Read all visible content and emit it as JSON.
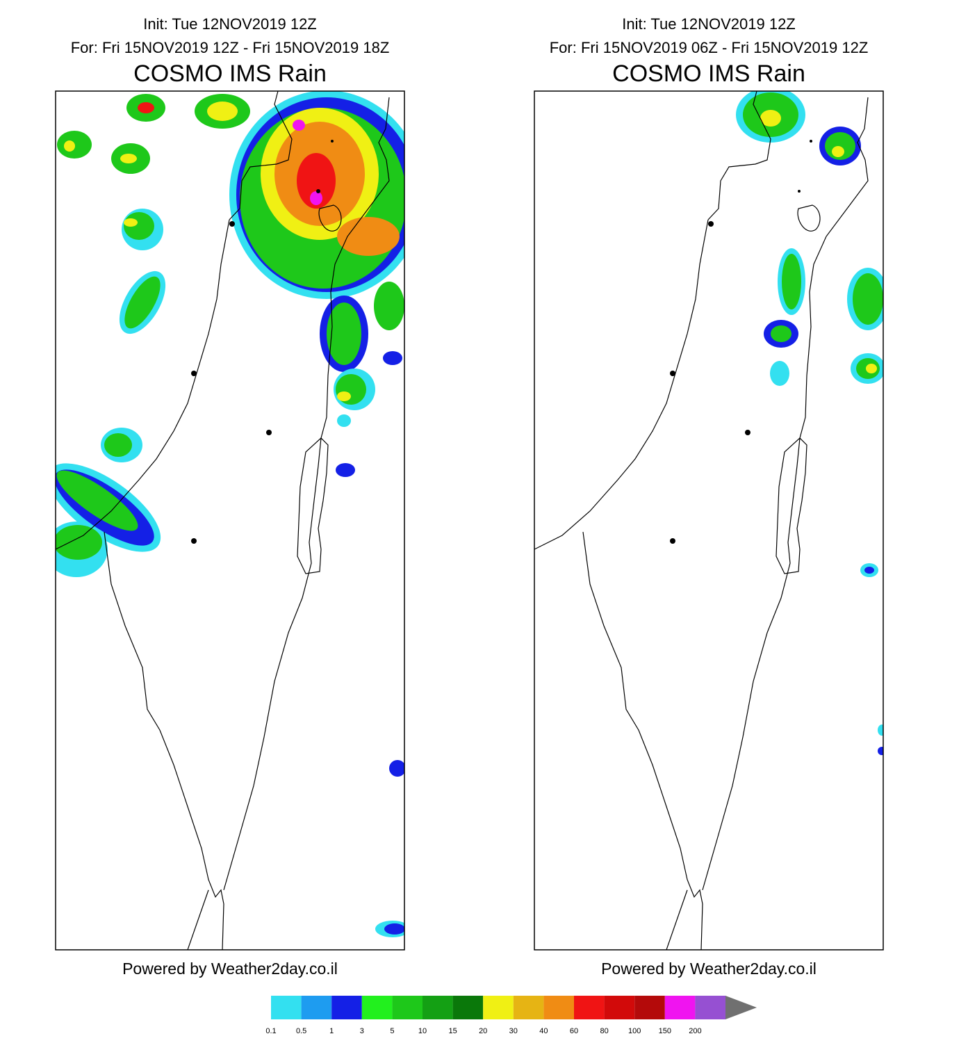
{
  "panels": [
    {
      "init": "Init: Tue 12NOV2019 12Z",
      "for": "For: Fri 15NOV2019 12Z - Fri 15NOV2019 18Z",
      "title": "COSMO IMS Rain",
      "footer": "Powered by Weather2day.co.il"
    },
    {
      "init": "Init: Tue 12NOV2019 12Z",
      "for": "For: Fri 15NOV2019 06Z - Fri 15NOV2019 12Z",
      "title": "COSMO IMS Rain",
      "footer": "Powered by Weather2day.co.il"
    }
  ],
  "legend": {
    "ticks": [
      0.1,
      0.5,
      1,
      3,
      5,
      10,
      15,
      20,
      30,
      40,
      60,
      80,
      100,
      150,
      200
    ],
    "colors": [
      "#33e0f0",
      "#1e9cf0",
      "#1420e6",
      "#22f01e",
      "#1ec81a",
      "#14a014",
      "#0a780a",
      "#f0f014",
      "#e6b414",
      "#f08c14",
      "#f01414",
      "#d20a0a",
      "#b40a0a",
      "#f014f0",
      "#9650d2"
    ],
    "arrow_color": "#707070"
  }
}
